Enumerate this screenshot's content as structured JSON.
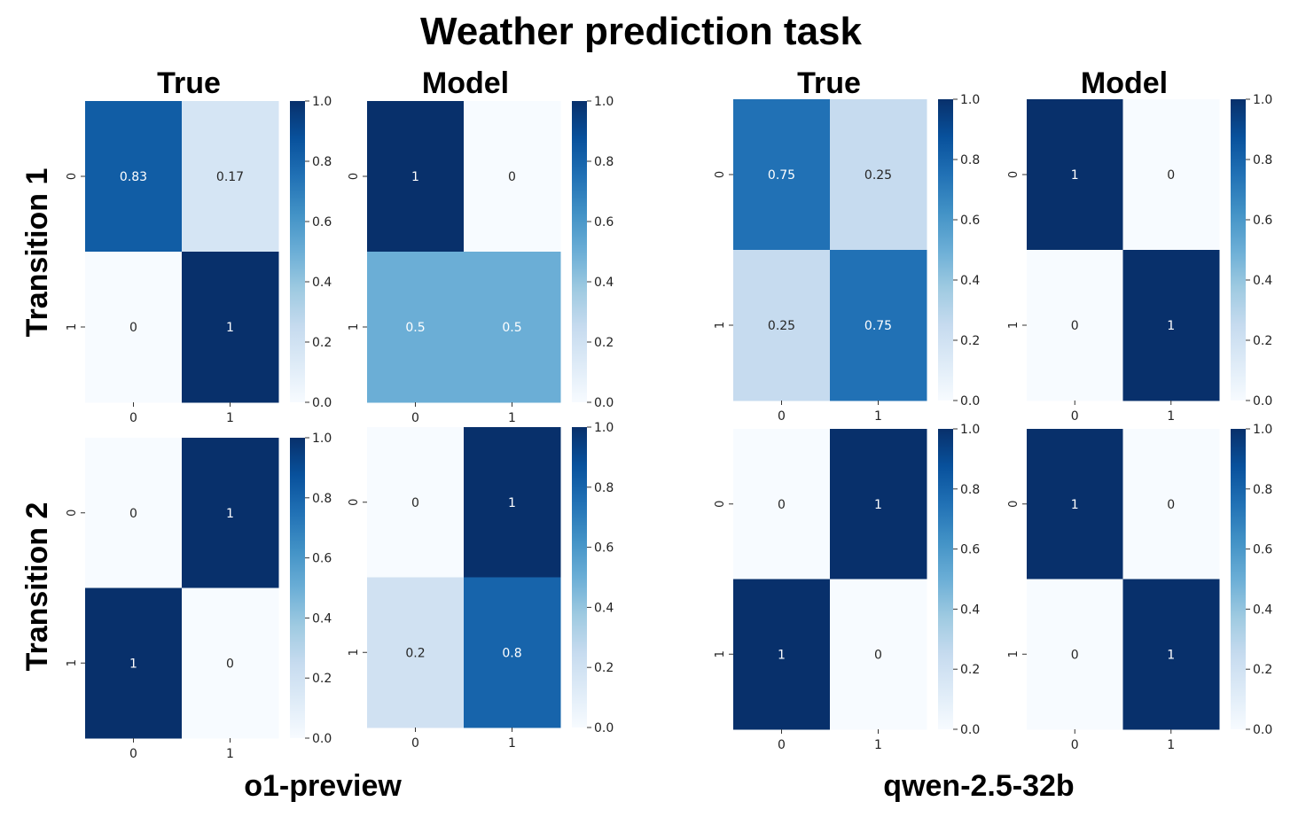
{
  "title": "Weather prediction task",
  "column_labels": [
    "True",
    "Model",
    "True",
    "Model"
  ],
  "row_labels": [
    "Transition 1",
    "Transition 2"
  ],
  "group_labels": [
    "o1-preview",
    "qwen-2.5-32b"
  ],
  "colormap": {
    "name": "Blues",
    "stops": [
      "#f7fbff",
      "#deebf7",
      "#c6dbef",
      "#9ecae1",
      "#6baed6",
      "#4292c6",
      "#2171b5",
      "#08519c",
      "#08306b"
    ]
  },
  "chart_data": [
    {
      "type": "heatmap",
      "group": "o1-preview",
      "row_label": "Transition 1",
      "col_label": "True",
      "x_ticks": [
        "0",
        "1"
      ],
      "y_ticks": [
        "0",
        "1"
      ],
      "values": [
        [
          0.83,
          0.17
        ],
        [
          0,
          1
        ]
      ],
      "annotations": [
        [
          "0.83",
          "0.17"
        ],
        [
          "0",
          "1"
        ]
      ],
      "colorbar_ticks": [
        "0.0",
        "0.2",
        "0.4",
        "0.6",
        "0.8",
        "1.0"
      ],
      "vmin": 0,
      "vmax": 1
    },
    {
      "type": "heatmap",
      "group": "o1-preview",
      "row_label": "Transition 1",
      "col_label": "Model",
      "x_ticks": [
        "0",
        "1"
      ],
      "y_ticks": [
        "0",
        "1"
      ],
      "values": [
        [
          1,
          0
        ],
        [
          0.5,
          0.5
        ]
      ],
      "annotations": [
        [
          "1",
          "0"
        ],
        [
          "0.5",
          "0.5"
        ]
      ],
      "colorbar_ticks": [
        "0.0",
        "0.2",
        "0.4",
        "0.6",
        "0.8",
        "1.0"
      ],
      "vmin": 0,
      "vmax": 1
    },
    {
      "type": "heatmap",
      "group": "qwen-2.5-32b",
      "row_label": "Transition 1",
      "col_label": "True",
      "x_ticks": [
        "0",
        "1"
      ],
      "y_ticks": [
        "0",
        "1"
      ],
      "values": [
        [
          0.75,
          0.25
        ],
        [
          0.25,
          0.75
        ]
      ],
      "annotations": [
        [
          "0.75",
          "0.25"
        ],
        [
          "0.25",
          "0.75"
        ]
      ],
      "colorbar_ticks": [
        "0.0",
        "0.2",
        "0.4",
        "0.6",
        "0.8",
        "1.0"
      ],
      "vmin": 0,
      "vmax": 1
    },
    {
      "type": "heatmap",
      "group": "qwen-2.5-32b",
      "row_label": "Transition 1",
      "col_label": "Model",
      "x_ticks": [
        "0",
        "1"
      ],
      "y_ticks": [
        "0",
        "1"
      ],
      "values": [
        [
          1,
          0
        ],
        [
          0,
          1
        ]
      ],
      "annotations": [
        [
          "1",
          "0"
        ],
        [
          "0",
          "1"
        ]
      ],
      "colorbar_ticks": [
        "0.0",
        "0.2",
        "0.4",
        "0.6",
        "0.8",
        "1.0"
      ],
      "vmin": 0,
      "vmax": 1
    },
    {
      "type": "heatmap",
      "group": "o1-preview",
      "row_label": "Transition 2",
      "col_label": "True",
      "x_ticks": [
        "0",
        "1"
      ],
      "y_ticks": [
        "0",
        "1"
      ],
      "values": [
        [
          0,
          1
        ],
        [
          1,
          0
        ]
      ],
      "annotations": [
        [
          "0",
          "1"
        ],
        [
          "1",
          "0"
        ]
      ],
      "colorbar_ticks": [
        "0.0",
        "0.2",
        "0.4",
        "0.6",
        "0.8",
        "1.0"
      ],
      "vmin": 0,
      "vmax": 1
    },
    {
      "type": "heatmap",
      "group": "o1-preview",
      "row_label": "Transition 2",
      "col_label": "Model",
      "x_ticks": [
        "0",
        "1"
      ],
      "y_ticks": [
        "0",
        "1"
      ],
      "values": [
        [
          0,
          1
        ],
        [
          0.2,
          0.8
        ]
      ],
      "annotations": [
        [
          "0",
          "1"
        ],
        [
          "0.2",
          "0.8"
        ]
      ],
      "colorbar_ticks": [
        "0.0",
        "0.2",
        "0.4",
        "0.6",
        "0.8",
        "1.0"
      ],
      "vmin": 0,
      "vmax": 1
    },
    {
      "type": "heatmap",
      "group": "qwen-2.5-32b",
      "row_label": "Transition 2",
      "col_label": "True",
      "x_ticks": [
        "0",
        "1"
      ],
      "y_ticks": [
        "0",
        "1"
      ],
      "values": [
        [
          0,
          1
        ],
        [
          1,
          0
        ]
      ],
      "annotations": [
        [
          "0",
          "1"
        ],
        [
          "1",
          "0"
        ]
      ],
      "colorbar_ticks": [
        "0.0",
        "0.2",
        "0.4",
        "0.6",
        "0.8",
        "1.0"
      ],
      "vmin": 0,
      "vmax": 1
    },
    {
      "type": "heatmap",
      "group": "qwen-2.5-32b",
      "row_label": "Transition 2",
      "col_label": "Model",
      "x_ticks": [
        "0",
        "1"
      ],
      "y_ticks": [
        "0",
        "1"
      ],
      "values": [
        [
          1,
          0
        ],
        [
          0,
          1
        ]
      ],
      "annotations": [
        [
          "1",
          "0"
        ],
        [
          "0",
          "1"
        ]
      ],
      "colorbar_ticks": [
        "0.0",
        "0.2",
        "0.4",
        "0.6",
        "0.8",
        "1.0"
      ],
      "vmin": 0,
      "vmax": 1
    }
  ]
}
